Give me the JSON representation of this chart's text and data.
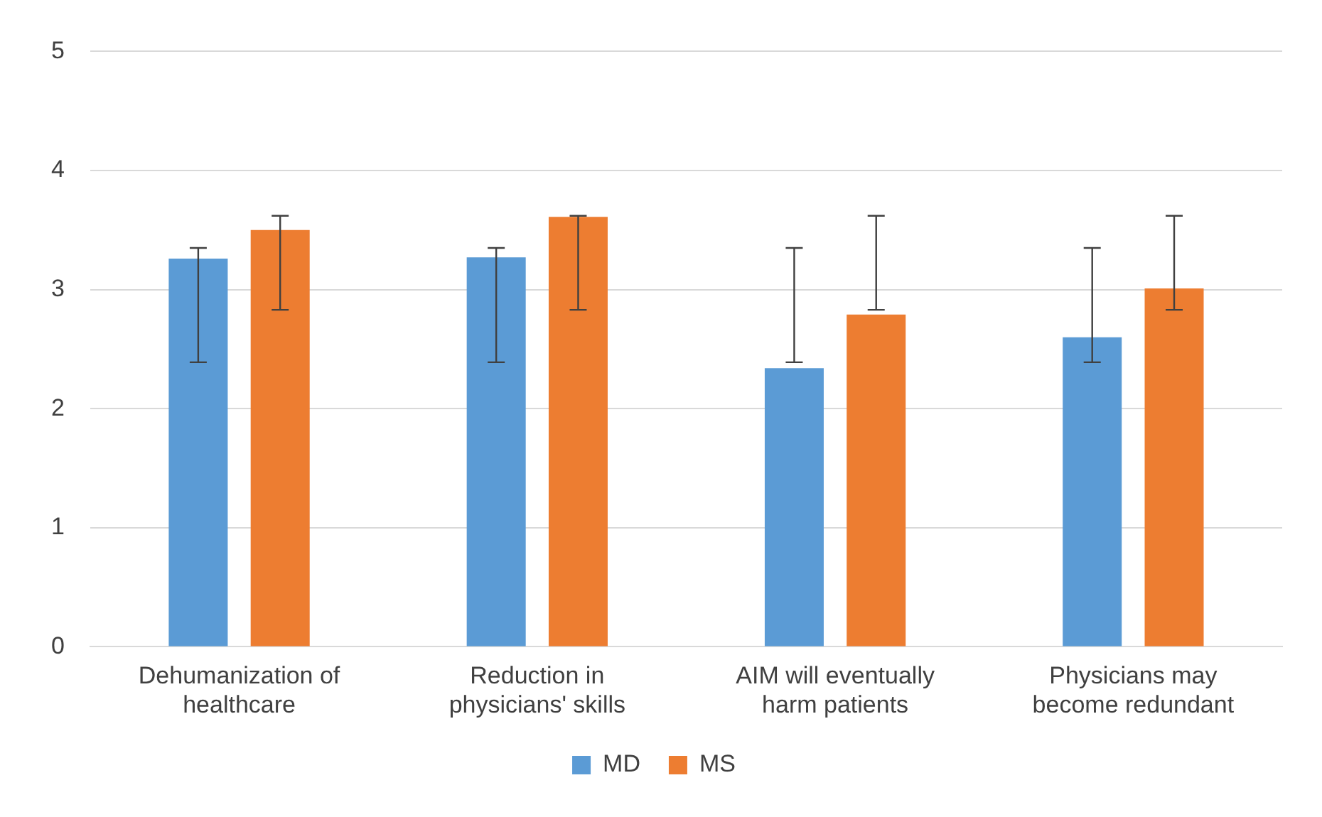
{
  "chart_data": {
    "type": "bar",
    "categories": [
      "Dehumanization of healthcare",
      "Reduction in physicians' skills",
      "AIM will eventually harm patients",
      "Physicians may become redundant"
    ],
    "series": [
      {
        "name": "MD",
        "color": "#5b9bd5",
        "values": [
          3.26,
          3.27,
          2.34,
          2.6
        ],
        "errors": [
          [
            2.39,
            3.35
          ],
          [
            2.39,
            3.35
          ],
          [
            2.39,
            3.35
          ],
          [
            2.39,
            3.35
          ]
        ]
      },
      {
        "name": "MS",
        "color": "#ed7d31",
        "values": [
          3.5,
          3.61,
          2.79,
          3.01
        ],
        "errors": [
          [
            2.83,
            3.62
          ],
          [
            2.83,
            3.62
          ],
          [
            2.83,
            3.62
          ],
          [
            2.83,
            3.62
          ]
        ]
      }
    ],
    "ylim": [
      0,
      5
    ],
    "yticks": [
      0,
      1,
      2,
      3,
      4,
      5
    ],
    "grid": "y",
    "legend": "bottom"
  }
}
